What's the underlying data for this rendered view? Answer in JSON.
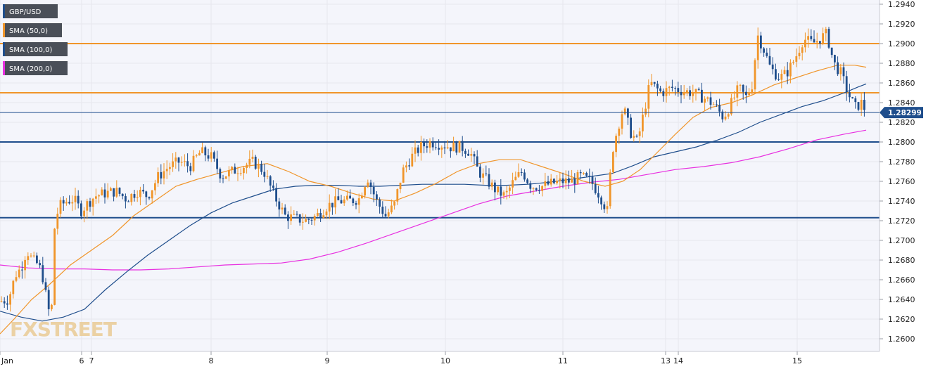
{
  "chart_data": {
    "type": "candlestick",
    "symbol": "GBP/USD",
    "current_price": "1.28299",
    "ylim": [
      1.2592,
      1.2945
    ],
    "y_ticks": [
      "1.2600",
      "1.2620",
      "1.2640",
      "1.2660",
      "1.2680",
      "1.2700",
      "1.2720",
      "1.2740",
      "1.2760",
      "1.2780",
      "1.2800",
      "1.2820",
      "1.2840",
      "1.2860",
      "1.2880",
      "1.2900",
      "1.2920",
      "1.2940"
    ],
    "x_ticks": [
      {
        "label": "Jan",
        "t": 0
      },
      {
        "label": "6",
        "t": 116
      },
      {
        "label": "7",
        "t": 130
      },
      {
        "label": "8",
        "t": 300
      },
      {
        "label": "9",
        "t": 465
      },
      {
        "label": "10",
        "t": 633
      },
      {
        "label": "11",
        "t": 800
      },
      {
        "label": "13",
        "t": 946
      },
      {
        "label": "14",
        "t": 964
      },
      {
        "label": "15",
        "t": 1133
      }
    ],
    "horizontal_levels": [
      {
        "value": 1.29,
        "color": "#f0952a"
      },
      {
        "value": 1.285,
        "color": "#f0952a"
      },
      {
        "value": 1.28,
        "color": "#1f4e8c"
      },
      {
        "value": 1.2723,
        "color": "#1f4e8c"
      }
    ],
    "legend": [
      {
        "label": "GBP/USD",
        "color": "#1f4e8c"
      },
      {
        "label": "SMA (50,0)",
        "color": "#f0952a"
      },
      {
        "label": "SMA (100,0)",
        "color": "#1f4e8c"
      },
      {
        "label": "SMA (200,0)",
        "color": "#e830e0"
      }
    ],
    "price_path": [
      [
        0,
        1.2638
      ],
      [
        12,
        1.264
      ],
      [
        22,
        1.2665
      ],
      [
        30,
        1.2672
      ],
      [
        38,
        1.269
      ],
      [
        46,
        1.268
      ],
      [
        55,
        1.2675
      ],
      [
        62,
        1.266
      ],
      [
        68,
        1.263
      ],
      [
        73,
        1.2625
      ],
      [
        78,
        1.272
      ],
      [
        85,
        1.2735
      ],
      [
        95,
        1.274
      ],
      [
        105,
        1.2742
      ],
      [
        115,
        1.273
      ],
      [
        125,
        1.2738
      ],
      [
        135,
        1.2745
      ],
      [
        150,
        1.2748
      ],
      [
        165,
        1.275
      ],
      [
        180,
        1.2742
      ],
      [
        195,
        1.275
      ],
      [
        210,
        1.2745
      ],
      [
        225,
        1.2765
      ],
      [
        240,
        1.2775
      ],
      [
        255,
        1.278
      ],
      [
        270,
        1.2775
      ],
      [
        285,
        1.279
      ],
      [
        300,
        1.2785
      ],
      [
        315,
        1.2765
      ],
      [
        330,
        1.277
      ],
      [
        345,
        1.2775
      ],
      [
        360,
        1.278
      ],
      [
        375,
        1.277
      ],
      [
        390,
        1.2745
      ],
      [
        405,
        1.2725
      ],
      [
        420,
        1.2722
      ],
      [
        435,
        1.272
      ],
      [
        450,
        1.2725
      ],
      [
        465,
        1.2735
      ],
      [
        480,
        1.274
      ],
      [
        495,
        1.274
      ],
      [
        510,
        1.2742
      ],
      [
        522,
        1.2765
      ],
      [
        535,
        1.274
      ],
      [
        548,
        1.2725
      ],
      [
        560,
        1.2735
      ],
      [
        572,
        1.277
      ],
      [
        585,
        1.2785
      ],
      [
        598,
        1.2795
      ],
      [
        612,
        1.28
      ],
      [
        625,
        1.2798
      ],
      [
        640,
        1.2795
      ],
      [
        655,
        1.2795
      ],
      [
        668,
        1.279
      ],
      [
        680,
        1.277
      ],
      [
        693,
        1.276
      ],
      [
        706,
        1.275
      ],
      [
        718,
        1.2745
      ],
      [
        730,
        1.276
      ],
      [
        742,
        1.277
      ],
      [
        755,
        1.2755
      ],
      [
        770,
        1.2755
      ],
      [
        785,
        1.2758
      ],
      [
        800,
        1.276
      ],
      [
        812,
        1.276
      ],
      [
        825,
        1.2765
      ],
      [
        840,
        1.276
      ],
      [
        853,
        1.2745
      ],
      [
        863,
        1.273
      ],
      [
        870,
        1.279
      ],
      [
        878,
        1.2815
      ],
      [
        886,
        1.2835
      ],
      [
        896,
        1.281
      ],
      [
        906,
        1.28
      ],
      [
        915,
        1.283
      ],
      [
        924,
        1.286
      ],
      [
        940,
        1.285
      ],
      [
        955,
        1.2855
      ],
      [
        970,
        1.2852
      ],
      [
        985,
        1.285
      ],
      [
        1000,
        1.2845
      ],
      [
        1015,
        1.2838
      ],
      [
        1028,
        1.2825
      ],
      [
        1040,
        1.284
      ],
      [
        1050,
        1.2855
      ],
      [
        1060,
        1.2845
      ],
      [
        1070,
        1.286
      ],
      [
        1076,
        1.291
      ],
      [
        1085,
        1.2895
      ],
      [
        1095,
        1.2875
      ],
      [
        1108,
        1.2865
      ],
      [
        1118,
        1.287
      ],
      [
        1130,
        1.2885
      ],
      [
        1142,
        1.2905
      ],
      [
        1155,
        1.29
      ],
      [
        1165,
        1.2905
      ],
      [
        1175,
        1.291
      ],
      [
        1185,
        1.288
      ],
      [
        1195,
        1.287
      ],
      [
        1205,
        1.285
      ],
      [
        1215,
        1.2835
      ],
      [
        1225,
        1.284
      ],
      [
        1231,
        1.283
      ]
    ],
    "sma_50": [
      [
        0,
        1.2605
      ],
      [
        20,
        1.262
      ],
      [
        45,
        1.264
      ],
      [
        70,
        1.2655
      ],
      [
        100,
        1.2675
      ],
      [
        130,
        1.269
      ],
      [
        160,
        1.2705
      ],
      [
        190,
        1.2725
      ],
      [
        220,
        1.274
      ],
      [
        250,
        1.2755
      ],
      [
        280,
        1.2762
      ],
      [
        310,
        1.2768
      ],
      [
        345,
        1.2775
      ],
      [
        380,
        1.2778
      ],
      [
        410,
        1.277
      ],
      [
        440,
        1.276
      ],
      [
        470,
        1.2755
      ],
      [
        500,
        1.2748
      ],
      [
        530,
        1.2742
      ],
      [
        560,
        1.274
      ],
      [
        590,
        1.2748
      ],
      [
        620,
        1.2758
      ],
      [
        650,
        1.277
      ],
      [
        680,
        1.2778
      ],
      [
        710,
        1.2782
      ],
      [
        740,
        1.2782
      ],
      [
        770,
        1.2775
      ],
      [
        800,
        1.2768
      ],
      [
        830,
        1.276
      ],
      [
        860,
        1.2755
      ],
      [
        885,
        1.276
      ],
      [
        910,
        1.2772
      ],
      [
        935,
        1.279
      ],
      [
        960,
        1.2808
      ],
      [
        985,
        1.2825
      ],
      [
        1010,
        1.2835
      ],
      [
        1040,
        1.284
      ],
      [
        1070,
        1.2848
      ],
      [
        1100,
        1.2858
      ],
      [
        1130,
        1.2865
      ],
      [
        1160,
        1.2872
      ],
      [
        1190,
        1.2878
      ],
      [
        1215,
        1.2878
      ],
      [
        1231,
        1.2876
      ]
    ],
    "sma_100": [
      [
        0,
        1.2628
      ],
      [
        30,
        1.2622
      ],
      [
        60,
        1.2618
      ],
      [
        90,
        1.2622
      ],
      [
        120,
        1.263
      ],
      [
        150,
        1.265
      ],
      [
        180,
        1.2668
      ],
      [
        210,
        1.2685
      ],
      [
        240,
        1.27
      ],
      [
        270,
        1.2715
      ],
      [
        300,
        1.2728
      ],
      [
        330,
        1.2738
      ],
      [
        360,
        1.2745
      ],
      [
        390,
        1.2752
      ],
      [
        420,
        1.2755
      ],
      [
        450,
        1.2756
      ],
      [
        480,
        1.2756
      ],
      [
        510,
        1.2755
      ],
      [
        540,
        1.2755
      ],
      [
        570,
        1.2756
      ],
      [
        600,
        1.2757
      ],
      [
        630,
        1.2757
      ],
      [
        660,
        1.2757
      ],
      [
        690,
        1.2756
      ],
      [
        720,
        1.2756
      ],
      [
        750,
        1.2757
      ],
      [
        780,
        1.2759
      ],
      [
        810,
        1.2762
      ],
      [
        840,
        1.2765
      ],
      [
        870,
        1.2768
      ],
      [
        900,
        1.2776
      ],
      [
        930,
        1.2785
      ],
      [
        960,
        1.279
      ],
      [
        990,
        1.2795
      ],
      [
        1020,
        1.2802
      ],
      [
        1050,
        1.281
      ],
      [
        1080,
        1.282
      ],
      [
        1110,
        1.2828
      ],
      [
        1140,
        1.2836
      ],
      [
        1170,
        1.2842
      ],
      [
        1200,
        1.285
      ],
      [
        1220,
        1.2856
      ],
      [
        1231,
        1.2859
      ]
    ],
    "sma_200": [
      [
        0,
        1.2675
      ],
      [
        40,
        1.2672
      ],
      [
        80,
        1.2671
      ],
      [
        120,
        1.2671
      ],
      [
        160,
        1.267
      ],
      [
        200,
        1.267
      ],
      [
        240,
        1.2671
      ],
      [
        280,
        1.2673
      ],
      [
        320,
        1.2675
      ],
      [
        360,
        1.2676
      ],
      [
        400,
        1.2677
      ],
      [
        440,
        1.2681
      ],
      [
        480,
        1.2688
      ],
      [
        520,
        1.2697
      ],
      [
        560,
        1.2707
      ],
      [
        600,
        1.2717
      ],
      [
        640,
        1.2727
      ],
      [
        680,
        1.2737
      ],
      [
        720,
        1.2745
      ],
      [
        760,
        1.275
      ],
      [
        800,
        1.2755
      ],
      [
        840,
        1.2759
      ],
      [
        880,
        1.2762
      ],
      [
        920,
        1.2767
      ],
      [
        960,
        1.2772
      ],
      [
        1000,
        1.2775
      ],
      [
        1040,
        1.2779
      ],
      [
        1080,
        1.2785
      ],
      [
        1120,
        1.2793
      ],
      [
        1160,
        1.2802
      ],
      [
        1200,
        1.2808
      ],
      [
        1231,
        1.2812
      ]
    ]
  },
  "watermark": "FXSTREET",
  "colors": {
    "bull": "#f0952a",
    "bear": "#1f4e8c",
    "grid": "#e6e6ee",
    "plot_bg": "#f4f5fb",
    "legend_bg": "#4a4f58"
  }
}
